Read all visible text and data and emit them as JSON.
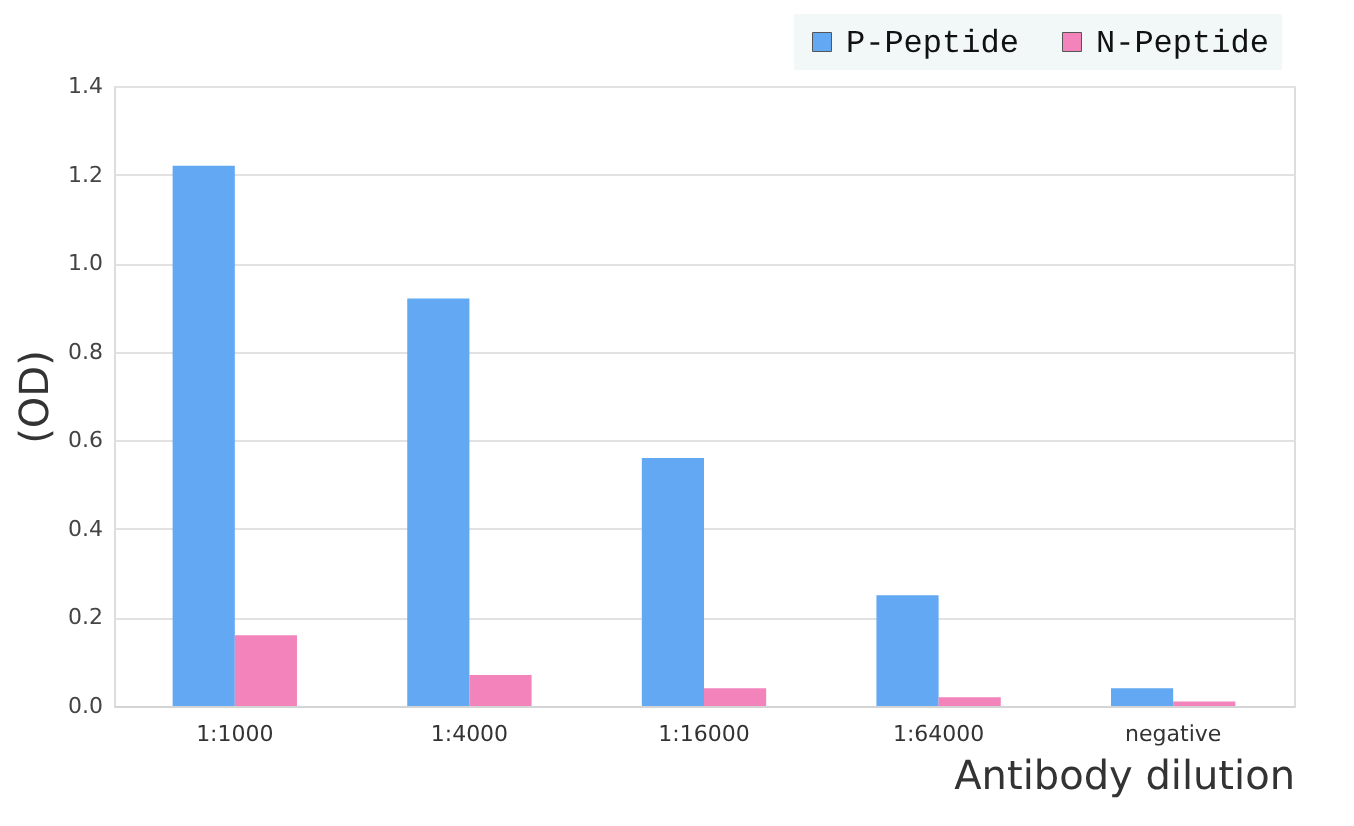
{
  "chart_data": {
    "type": "bar",
    "xlabel": "Antibody dilution",
    "ylabel": "(OD)",
    "categories": [
      "1:1000",
      "1:4000",
      "1:16000",
      "1:64000",
      "negative"
    ],
    "series": [
      {
        "name": "P-Peptide",
        "color": "#62a8f2",
        "values": [
          1.22,
          0.92,
          0.56,
          0.25,
          0.04
        ]
      },
      {
        "name": "N-Peptide",
        "color": "#f283bb",
        "values": [
          0.16,
          0.07,
          0.04,
          0.02,
          0.01
        ]
      }
    ],
    "ylim": [
      0,
      1.4
    ],
    "yticks": [
      {
        "value": 0,
        "label": "0.0"
      },
      0.2,
      0.4,
      0.6,
      0.8,
      {
        "value": 1,
        "label": "1.0"
      },
      1.2,
      1.4
    ],
    "grid": "y",
    "legend": "top right"
  }
}
